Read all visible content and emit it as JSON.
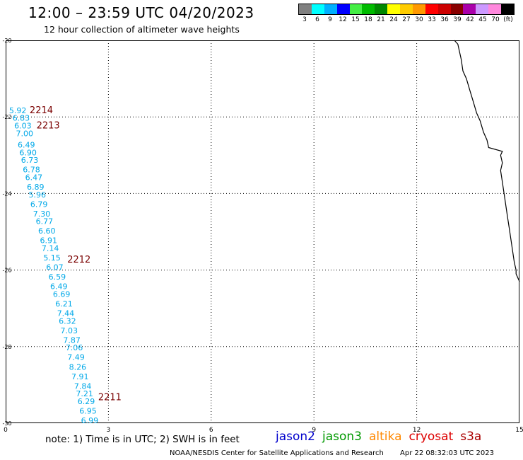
{
  "title": "12:00 – 23:59 UTC 04/20/2023",
  "subtitle": "12 hour collection of altimeter wave heights",
  "legend": {
    "labels": [
      "3",
      "6",
      "9",
      "12",
      "15",
      "18",
      "21",
      "24",
      "27",
      "30",
      "33",
      "36",
      "39",
      "42",
      "45",
      "70",
      "(ft)"
    ],
    "colors": [
      "#808080",
      "#00ffff",
      "#00b0ff",
      "#0000ff",
      "#44ee44",
      "#00bb00",
      "#008800",
      "#ffff00",
      "#ffcc00",
      "#ff9900",
      "#ff0000",
      "#cc0000",
      "#880000",
      "#aa00aa",
      "#cc99ff",
      "#ff88dd",
      "#000000"
    ]
  },
  "axes": {
    "x_ticks": [
      "0",
      "3",
      "6",
      "9",
      "12",
      "15"
    ],
    "y_ticks": [
      "-20",
      "-22",
      "-24",
      "-26",
      "-28",
      "-30"
    ],
    "lon_range": [
      0,
      15
    ],
    "lat_range": [
      -30,
      -20
    ]
  },
  "passes": [
    {
      "id": "2214",
      "lon": 0.7,
      "lat": -21.9
    },
    {
      "id": "2213",
      "lon": 0.9,
      "lat": -22.3
    },
    {
      "id": "2212",
      "lon": 1.8,
      "lat": -25.8
    },
    {
      "id": "2211",
      "lon": 2.7,
      "lat": -29.4
    }
  ],
  "pass_label_color": "#7a0000",
  "observations": [
    {
      "v": "5.92",
      "lon": 0.1,
      "lat": -21.9
    },
    {
      "v": "6.83",
      "lon": 0.2,
      "lat": -22.1
    },
    {
      "v": "6.03",
      "lon": 0.25,
      "lat": -22.3
    },
    {
      "v": "7.00",
      "lon": 0.3,
      "lat": -22.5
    },
    {
      "v": "6.49",
      "lon": 0.35,
      "lat": -22.8
    },
    {
      "v": "6.90",
      "lon": 0.4,
      "lat": -23.0
    },
    {
      "v": "6.73",
      "lon": 0.45,
      "lat": -23.2
    },
    {
      "v": "6.78",
      "lon": 0.5,
      "lat": -23.45
    },
    {
      "v": "6.47",
      "lon": 0.57,
      "lat": -23.65
    },
    {
      "v": "6.89",
      "lon": 0.62,
      "lat": -23.9
    },
    {
      "v": "5.96",
      "lon": 0.67,
      "lat": -24.1
    },
    {
      "v": "6.79",
      "lon": 0.72,
      "lat": -24.35
    },
    {
      "v": "7.30",
      "lon": 0.8,
      "lat": -24.6
    },
    {
      "v": "6.77",
      "lon": 0.88,
      "lat": -24.8
    },
    {
      "v": "6.60",
      "lon": 0.95,
      "lat": -25.05
    },
    {
      "v": "6.91",
      "lon": 1.0,
      "lat": -25.3
    },
    {
      "v": "7.14",
      "lon": 1.05,
      "lat": -25.5
    },
    {
      "v": "5.15",
      "lon": 1.1,
      "lat": -25.75
    },
    {
      "v": "6.07",
      "lon": 1.18,
      "lat": -26.0
    },
    {
      "v": "6.59",
      "lon": 1.25,
      "lat": -26.25
    },
    {
      "v": "6.49",
      "lon": 1.3,
      "lat": -26.5
    },
    {
      "v": "6.69",
      "lon": 1.38,
      "lat": -26.7
    },
    {
      "v": "6.21",
      "lon": 1.45,
      "lat": -26.95
    },
    {
      "v": "7.44",
      "lon": 1.5,
      "lat": -27.2
    },
    {
      "v": "6.32",
      "lon": 1.55,
      "lat": -27.4
    },
    {
      "v": "7.03",
      "lon": 1.6,
      "lat": -27.65
    },
    {
      "v": "7.87",
      "lon": 1.68,
      "lat": -27.9
    },
    {
      "v": "7.06",
      "lon": 1.75,
      "lat": -28.1
    },
    {
      "v": "7.49",
      "lon": 1.8,
      "lat": -28.35
    },
    {
      "v": "8.26",
      "lon": 1.85,
      "lat": -28.6
    },
    {
      "v": "7.91",
      "lon": 1.92,
      "lat": -28.85
    },
    {
      "v": "7.84",
      "lon": 2.0,
      "lat": -29.1
    },
    {
      "v": "7.21",
      "lon": 2.05,
      "lat": -29.3
    },
    {
      "v": "6.29",
      "lon": 2.1,
      "lat": -29.5
    },
    {
      "v": "6.95",
      "lon": 2.15,
      "lat": -29.75
    },
    {
      "v": "6.99",
      "lon": 2.2,
      "lat": -30.0
    }
  ],
  "coastline": [
    [
      13.1,
      -20.0
    ],
    [
      13.2,
      -20.1
    ],
    [
      13.25,
      -20.3
    ],
    [
      13.3,
      -20.5
    ],
    [
      13.35,
      -20.8
    ],
    [
      13.45,
      -21.0
    ],
    [
      13.55,
      -21.3
    ],
    [
      13.65,
      -21.6
    ],
    [
      13.75,
      -21.9
    ],
    [
      13.85,
      -22.1
    ],
    [
      13.95,
      -22.4
    ],
    [
      14.05,
      -22.6
    ],
    [
      14.1,
      -22.8
    ],
    [
      14.5,
      -22.9
    ],
    [
      14.45,
      -23.0
    ],
    [
      14.5,
      -23.2
    ],
    [
      14.45,
      -23.4
    ],
    [
      14.5,
      -23.7
    ],
    [
      14.55,
      -24.0
    ],
    [
      14.6,
      -24.3
    ],
    [
      14.65,
      -24.6
    ],
    [
      14.7,
      -24.9
    ],
    [
      14.75,
      -25.2
    ],
    [
      14.8,
      -25.5
    ],
    [
      14.85,
      -25.8
    ],
    [
      14.9,
      -26.0
    ],
    [
      14.9,
      -26.1
    ],
    [
      15.0,
      -26.3
    ]
  ],
  "note": "note:  1) Time is in UTC;  2) SWH is in feet",
  "satellites": [
    {
      "name": "jason2",
      "color": "#0000cc"
    },
    {
      "name": "jason3",
      "color": "#009900"
    },
    {
      "name": "altika",
      "color": "#ff8800"
    },
    {
      "name": "cryosat",
      "color": "#dd0000"
    },
    {
      "name": "s3a",
      "color": "#aa0000"
    }
  ],
  "credit": "NOAA/NESDIS Center for Satellite Applications and Research",
  "timestamp": "Apr 22 08:32:03 UTC 2023",
  "obs_color": "#00a8e8"
}
